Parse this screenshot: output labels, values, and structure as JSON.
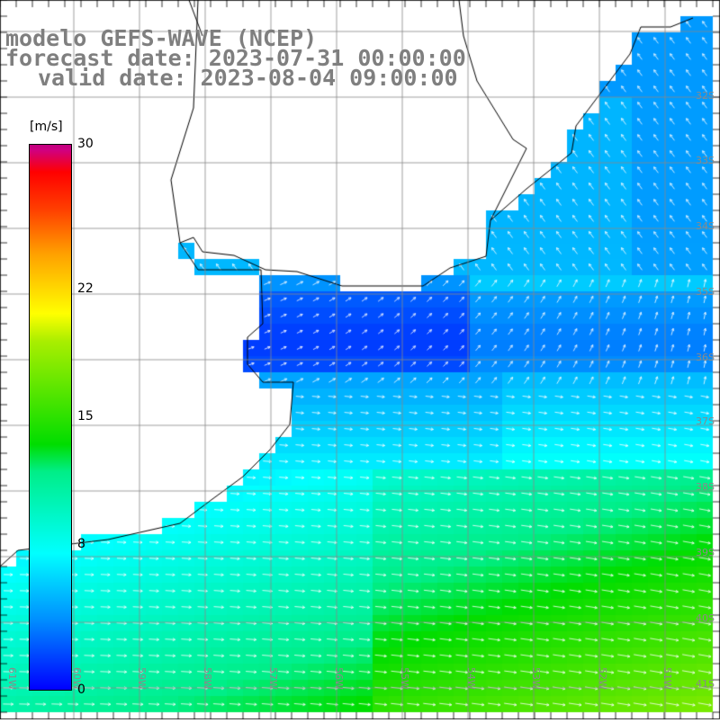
{
  "title": {
    "line1": "modelo GEFS-WAVE (NCEP)",
    "line2": "forecast date: 2023-07-31 00:00:00",
    "line3": "valid date: 2023-08-04 09:00:00"
  },
  "colorbar": {
    "unit": "[m/s]",
    "ticks": [
      "30",
      "22",
      "15",
      "8",
      "0"
    ],
    "tick_values": [
      30,
      22,
      15,
      8,
      0
    ],
    "range": [
      0,
      30
    ],
    "colors": [
      "#0000ff",
      "#00ffff",
      "#00dd00",
      "#ffff00",
      "#ff0000",
      "#c0007f"
    ]
  },
  "map": {
    "lat_labels": [
      "32S",
      "33S",
      "34S",
      "35S",
      "36S",
      "37S",
      "38S",
      "39S",
      "40S",
      "41S"
    ],
    "lon_labels": [
      "61W",
      "60W",
      "59W",
      "58W",
      "57W",
      "56W",
      "55W",
      "54W",
      "53W",
      "52W",
      "51W"
    ],
    "land_color": "#ffffff",
    "arrow_color": "#ffffff",
    "grid_color": "#888888"
  }
}
